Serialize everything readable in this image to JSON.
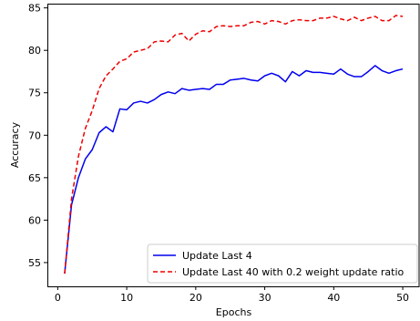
{
  "chart_data": {
    "type": "line",
    "xlabel": "Epochs",
    "ylabel": "Accuracy",
    "xlim": [
      -1.5,
      52.5
    ],
    "ylim": [
      52.2,
      85.5
    ],
    "xticks": [
      0,
      10,
      20,
      30,
      40,
      50
    ],
    "yticks": [
      55,
      60,
      65,
      70,
      75,
      80,
      85
    ],
    "grid": false,
    "legend_position": "lower-right",
    "x": [
      1,
      2,
      3,
      4,
      5,
      6,
      7,
      8,
      9,
      10,
      11,
      12,
      13,
      14,
      15,
      16,
      17,
      18,
      19,
      20,
      21,
      22,
      23,
      24,
      25,
      26,
      27,
      28,
      29,
      30,
      31,
      32,
      33,
      34,
      35,
      36,
      37,
      38,
      39,
      40,
      41,
      42,
      43,
      44,
      45,
      46,
      47,
      48,
      49,
      50
    ],
    "series": [
      {
        "name": "Update Last 4",
        "color": "#0000ee",
        "dash": "solid",
        "values": [
          53.7,
          61.8,
          65.0,
          67.2,
          68.3,
          70.3,
          71.0,
          70.4,
          73.1,
          73.0,
          73.8,
          74.0,
          73.8,
          74.2,
          74.8,
          75.1,
          74.9,
          75.5,
          75.3,
          75.4,
          75.5,
          75.4,
          76.0,
          76.0,
          76.5,
          76.6,
          76.7,
          76.5,
          76.4,
          77.0,
          77.3,
          77.0,
          76.3,
          77.5,
          77.0,
          77.6,
          77.4,
          77.4,
          77.3,
          77.2,
          77.8,
          77.2,
          76.9,
          76.9,
          77.5,
          78.2,
          77.6,
          77.3,
          77.6,
          77.8
        ]
      },
      {
        "name": "Update Last 40 with 0.2 weight update ratio",
        "color": "#ee0000",
        "dash": "dashed",
        "values": [
          53.7,
          62.5,
          67.5,
          70.8,
          72.9,
          75.5,
          77.0,
          77.8,
          78.7,
          79.0,
          79.8,
          80.0,
          80.2,
          81.0,
          81.1,
          81.0,
          81.8,
          82.0,
          81.1,
          81.9,
          82.3,
          82.2,
          82.8,
          82.9,
          82.8,
          82.9,
          82.9,
          83.3,
          83.4,
          83.1,
          83.5,
          83.4,
          83.1,
          83.5,
          83.6,
          83.5,
          83.5,
          83.8,
          83.8,
          84.0,
          83.7,
          83.5,
          83.9,
          83.5,
          83.8,
          84.0,
          83.5,
          83.5,
          84.1,
          84.0
        ]
      }
    ]
  }
}
